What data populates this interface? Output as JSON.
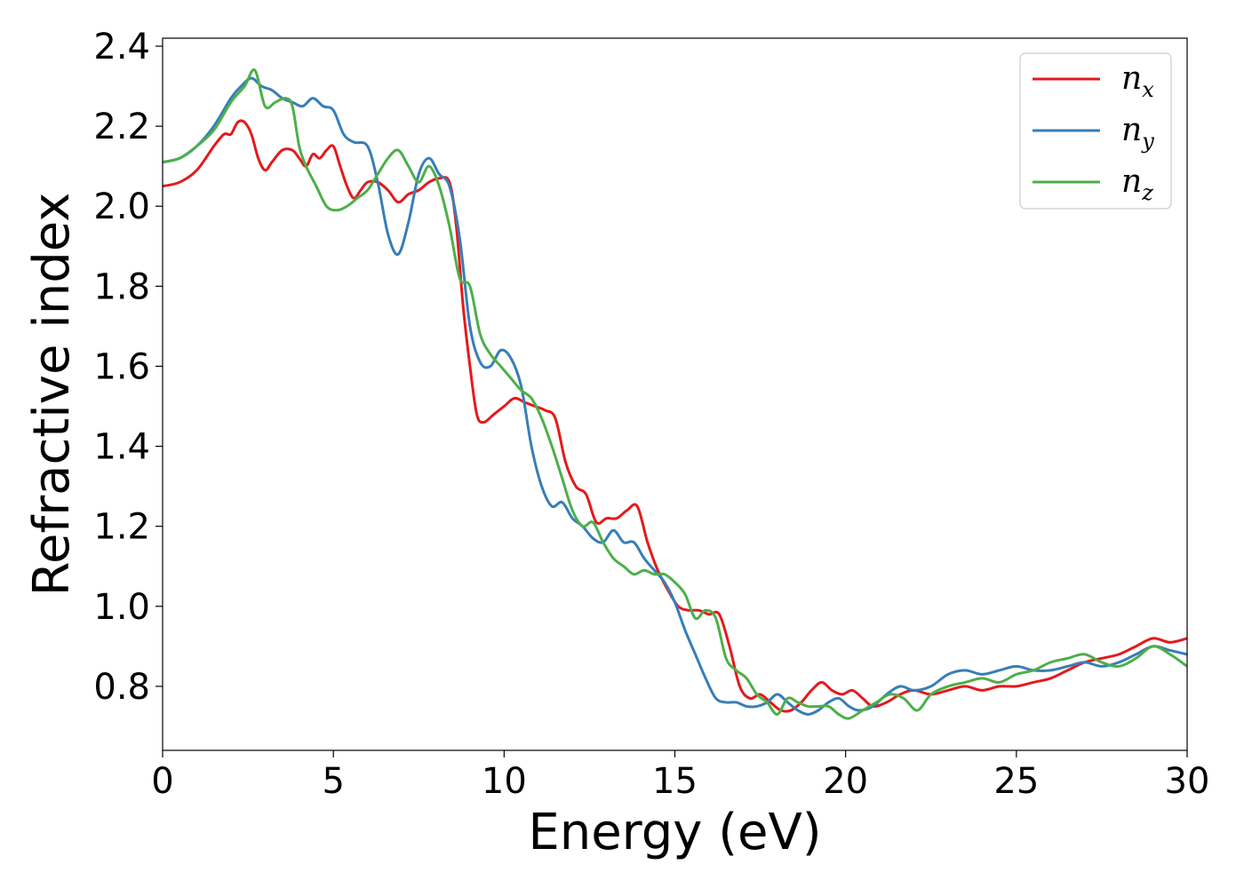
{
  "chart_data": {
    "type": "line",
    "title": "",
    "xlabel": "Energy (eV)",
    "ylabel": "Refractive index",
    "xlim": [
      0,
      30
    ],
    "ylim": [
      0.64,
      2.42
    ],
    "xticks": [
      0,
      5,
      10,
      15,
      20,
      25,
      30
    ],
    "xtick_labels": [
      "0",
      "5",
      "10",
      "15",
      "20",
      "25",
      "30"
    ],
    "yticks": [
      0.8,
      1.0,
      1.2,
      1.4,
      1.6,
      1.8,
      2.0,
      2.2,
      2.4
    ],
    "ytick_labels": [
      "0.8",
      "1.0",
      "1.2",
      "1.4",
      "1.6",
      "1.8",
      "2.0",
      "2.2",
      "2.4"
    ],
    "grid": false,
    "legend_position": "top-right",
    "series": [
      {
        "name": "n",
        "sub": "x",
        "color": "#e41a1c",
        "x": [
          0,
          0.5,
          1.0,
          1.5,
          1.8,
          2.0,
          2.2,
          2.4,
          2.6,
          2.8,
          3.0,
          3.2,
          3.5,
          3.8,
          4.0,
          4.2,
          4.4,
          4.6,
          4.8,
          5.0,
          5.2,
          5.4,
          5.6,
          5.8,
          6.0,
          6.3,
          6.6,
          6.9,
          7.2,
          7.5,
          7.8,
          8.1,
          8.4,
          8.6,
          8.8,
          9.0,
          9.2,
          9.4,
          9.7,
          10.0,
          10.3,
          10.6,
          10.9,
          11.2,
          11.5,
          11.8,
          12.1,
          12.4,
          12.7,
          13.0,
          13.3,
          13.6,
          13.9,
          14.2,
          14.5,
          14.8,
          15.1,
          15.4,
          15.7,
          16.0,
          16.3,
          16.6,
          16.9,
          17.2,
          17.5,
          17.8,
          18.1,
          18.4,
          18.7,
          19.0,
          19.3,
          19.6,
          19.9,
          20.2,
          20.5,
          20.8,
          21.2,
          21.6,
          22.0,
          22.5,
          23.0,
          23.5,
          24.0,
          24.5,
          25.0,
          25.5,
          26.0,
          26.5,
          27.0,
          27.5,
          28.0,
          28.5,
          29.0,
          29.5,
          30.0
        ],
        "y": [
          2.05,
          2.06,
          2.09,
          2.15,
          2.18,
          2.18,
          2.21,
          2.21,
          2.18,
          2.12,
          2.09,
          2.11,
          2.14,
          2.14,
          2.12,
          2.1,
          2.13,
          2.12,
          2.14,
          2.15,
          2.1,
          2.05,
          2.02,
          2.04,
          2.06,
          2.06,
          2.04,
          2.01,
          2.03,
          2.04,
          2.06,
          2.07,
          2.06,
          1.95,
          1.75,
          1.6,
          1.48,
          1.46,
          1.48,
          1.5,
          1.52,
          1.51,
          1.5,
          1.49,
          1.47,
          1.36,
          1.3,
          1.28,
          1.21,
          1.22,
          1.22,
          1.24,
          1.25,
          1.16,
          1.09,
          1.04,
          1.0,
          0.99,
          0.99,
          0.98,
          0.98,
          0.9,
          0.8,
          0.77,
          0.78,
          0.76,
          0.74,
          0.74,
          0.76,
          0.79,
          0.81,
          0.79,
          0.78,
          0.79,
          0.77,
          0.75,
          0.76,
          0.78,
          0.79,
          0.78,
          0.79,
          0.8,
          0.79,
          0.8,
          0.8,
          0.81,
          0.82,
          0.84,
          0.86,
          0.87,
          0.88,
          0.9,
          0.92,
          0.91,
          0.92
        ]
      },
      {
        "name": "n",
        "sub": "y",
        "color": "#377eb8",
        "x": [
          0,
          0.5,
          1.0,
          1.5,
          2.0,
          2.3,
          2.6,
          2.9,
          3.2,
          3.5,
          3.8,
          4.1,
          4.4,
          4.7,
          5.0,
          5.3,
          5.6,
          6.0,
          6.3,
          6.6,
          6.9,
          7.2,
          7.5,
          7.8,
          8.1,
          8.4,
          8.7,
          9.0,
          9.3,
          9.6,
          9.9,
          10.2,
          10.5,
          10.8,
          11.1,
          11.4,
          11.7,
          12.0,
          12.3,
          12.6,
          12.9,
          13.2,
          13.5,
          13.8,
          14.1,
          14.4,
          14.7,
          15.0,
          15.3,
          15.6,
          15.9,
          16.2,
          16.5,
          16.8,
          17.1,
          17.4,
          17.7,
          18.0,
          18.3,
          18.6,
          18.9,
          19.2,
          19.5,
          19.8,
          20.1,
          20.4,
          20.8,
          21.2,
          21.6,
          22.0,
          22.5,
          23.0,
          23.5,
          24.0,
          24.5,
          25.0,
          25.5,
          26.0,
          26.5,
          27.0,
          27.5,
          28.0,
          28.5,
          29.0,
          29.5,
          30.0
        ],
        "y": [
          2.11,
          2.12,
          2.15,
          2.2,
          2.27,
          2.3,
          2.32,
          2.3,
          2.29,
          2.27,
          2.26,
          2.25,
          2.27,
          2.25,
          2.24,
          2.18,
          2.16,
          2.15,
          2.06,
          1.93,
          1.88,
          1.96,
          2.08,
          2.12,
          2.08,
          2.05,
          1.92,
          1.7,
          1.61,
          1.6,
          1.64,
          1.62,
          1.55,
          1.4,
          1.3,
          1.25,
          1.26,
          1.22,
          1.2,
          1.17,
          1.16,
          1.19,
          1.16,
          1.16,
          1.12,
          1.09,
          1.06,
          1.01,
          0.94,
          0.88,
          0.82,
          0.77,
          0.76,
          0.76,
          0.75,
          0.75,
          0.76,
          0.78,
          0.76,
          0.74,
          0.73,
          0.74,
          0.76,
          0.77,
          0.75,
          0.74,
          0.75,
          0.78,
          0.8,
          0.79,
          0.8,
          0.83,
          0.84,
          0.83,
          0.84,
          0.85,
          0.84,
          0.84,
          0.85,
          0.86,
          0.85,
          0.86,
          0.88,
          0.9,
          0.89,
          0.88
        ]
      },
      {
        "name": "n",
        "sub": "z",
        "color": "#4daf4a",
        "x": [
          0,
          0.5,
          1.0,
          1.5,
          2.0,
          2.4,
          2.7,
          3.0,
          3.3,
          3.6,
          3.8,
          4.0,
          4.2,
          4.5,
          4.8,
          5.1,
          5.4,
          5.7,
          6.0,
          6.3,
          6.6,
          6.9,
          7.2,
          7.5,
          7.8,
          8.1,
          8.4,
          8.7,
          9.0,
          9.3,
          9.6,
          9.9,
          10.2,
          10.5,
          10.8,
          11.1,
          11.4,
          11.7,
          12.0,
          12.3,
          12.6,
          12.9,
          13.2,
          13.5,
          13.8,
          14.1,
          14.4,
          14.7,
          15.0,
          15.3,
          15.6,
          15.9,
          16.2,
          16.5,
          16.8,
          17.1,
          17.4,
          17.7,
          18.0,
          18.3,
          18.6,
          18.9,
          19.2,
          19.5,
          19.8,
          20.1,
          20.5,
          20.9,
          21.3,
          21.7,
          22.1,
          22.5,
          23.0,
          23.5,
          24.0,
          24.5,
          25.0,
          25.5,
          26.0,
          26.5,
          27.0,
          27.5,
          28.0,
          28.5,
          29.0,
          29.5,
          30.0
        ],
        "y": [
          2.11,
          2.12,
          2.15,
          2.19,
          2.26,
          2.3,
          2.34,
          2.25,
          2.26,
          2.27,
          2.25,
          2.15,
          2.1,
          2.05,
          2.0,
          1.99,
          2.0,
          2.02,
          2.04,
          2.08,
          2.12,
          2.14,
          2.1,
          2.06,
          2.1,
          2.05,
          1.95,
          1.82,
          1.8,
          1.68,
          1.63,
          1.6,
          1.57,
          1.54,
          1.52,
          1.47,
          1.4,
          1.32,
          1.24,
          1.2,
          1.21,
          1.16,
          1.12,
          1.1,
          1.08,
          1.09,
          1.08,
          1.08,
          1.06,
          1.03,
          0.97,
          0.99,
          0.97,
          0.87,
          0.84,
          0.82,
          0.78,
          0.76,
          0.73,
          0.77,
          0.76,
          0.75,
          0.75,
          0.75,
          0.73,
          0.72,
          0.74,
          0.76,
          0.78,
          0.77,
          0.74,
          0.78,
          0.8,
          0.81,
          0.82,
          0.81,
          0.83,
          0.84,
          0.86,
          0.87,
          0.88,
          0.86,
          0.85,
          0.87,
          0.9,
          0.88,
          0.85
        ]
      }
    ]
  }
}
